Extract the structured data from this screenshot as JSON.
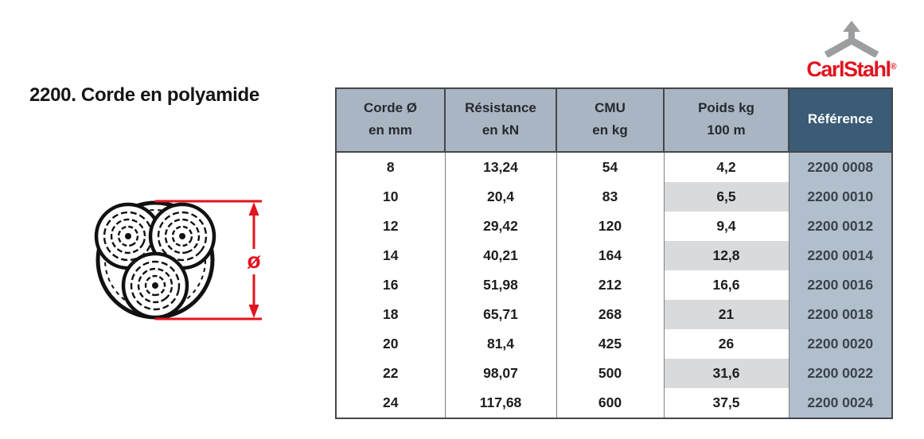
{
  "page": {
    "title": "2200. Corde en polyamide"
  },
  "logo": {
    "wordmark": "CarlStahl",
    "registered": "®"
  },
  "diagram": {
    "dimension_symbol": "ø"
  },
  "table": {
    "column_keys": [
      "diameter",
      "resistance",
      "cmu",
      "weight",
      "reference"
    ],
    "columns": [
      {
        "line1": "Corde Ø",
        "line2": "en mm"
      },
      {
        "line1": "Résistance",
        "line2": "en kN"
      },
      {
        "line1": "CMU",
        "line2": "en kg"
      },
      {
        "line1": "Poids kg",
        "line2": "100 m"
      },
      {
        "line1": "Référence",
        "line2": ""
      }
    ],
    "rows": [
      [
        "8",
        "13,24",
        "54",
        "4,2",
        "2200 0008"
      ],
      [
        "10",
        "20,4",
        "83",
        "6,5",
        "2200 0010"
      ],
      [
        "12",
        "29,42",
        "120",
        "9,4",
        "2200 0012"
      ],
      [
        "14",
        "40,21",
        "164",
        "12,8",
        "2200 0014"
      ],
      [
        "16",
        "51,98",
        "212",
        "16,6",
        "2200 0016"
      ],
      [
        "18",
        "65,71",
        "268",
        "21",
        "2200 0018"
      ],
      [
        "20",
        "81,4",
        "425",
        "26",
        "2200 0020"
      ],
      [
        "22",
        "98,07",
        "500",
        "31,6",
        "2200 0022"
      ],
      [
        "24",
        "117,68",
        "600",
        "37,5",
        "2200 0024"
      ]
    ]
  },
  "colors": {
    "header_bg": "#a9b5c2",
    "reference_header_bg": "#3b5b76",
    "reference_body_bg": "#b1becb",
    "zebra_stripe": "#d9dadb",
    "accent_red": "#e1141f",
    "logo_gray": "#9b9da0"
  }
}
